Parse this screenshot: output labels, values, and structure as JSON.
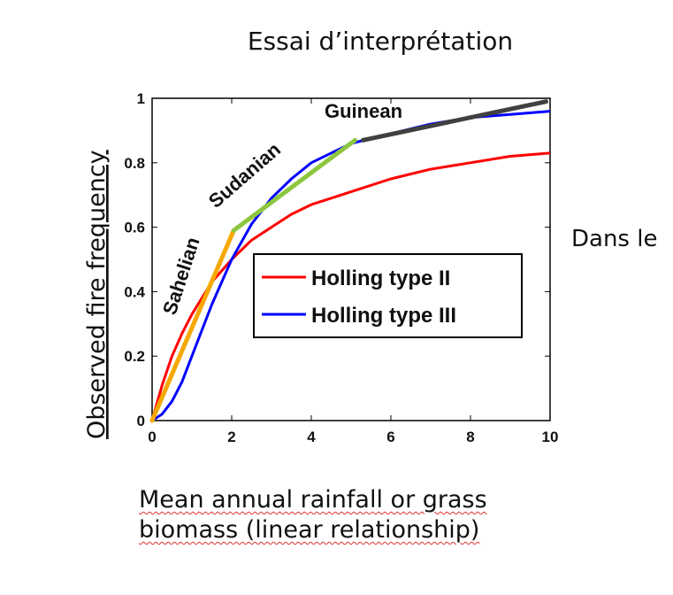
{
  "slide": {
    "title": "Essai d’interprétation",
    "side_text": "Dans le",
    "caption_line1": "Mean annual rainfall or grass",
    "caption_line2": "biomass (linear relationship)"
  },
  "chart_data": {
    "type": "line",
    "xlabel": "",
    "ylabel": "Observed fire frequency",
    "xlim": [
      0,
      10
    ],
    "ylim": [
      0,
      1
    ],
    "x_ticks": [
      0,
      2,
      4,
      6,
      8,
      10
    ],
    "y_ticks": [
      0,
      0.2,
      0.4,
      0.6,
      0.8,
      1
    ],
    "x_tick_labels": [
      "0",
      "2",
      "4",
      "6",
      "8",
      "10"
    ],
    "y_tick_labels": [
      "0",
      "0.2",
      "0.4",
      "0.6",
      "0.8",
      "1"
    ],
    "grid": false,
    "legend_position": "center-right",
    "series": [
      {
        "name": "Holling type II",
        "color": "#ff0000",
        "x": [
          0,
          0.25,
          0.5,
          0.75,
          1,
          1.5,
          2,
          2.5,
          3,
          3.5,
          4,
          5,
          6,
          7,
          8,
          9,
          10
        ],
        "y": [
          0,
          0.11,
          0.2,
          0.27,
          0.33,
          0.43,
          0.5,
          0.56,
          0.6,
          0.64,
          0.67,
          0.71,
          0.75,
          0.78,
          0.8,
          0.82,
          0.83
        ]
      },
      {
        "name": "Holling type III",
        "color": "#0000ff",
        "x": [
          0,
          0.25,
          0.5,
          0.75,
          1,
          1.5,
          2,
          2.5,
          3,
          3.5,
          4,
          5,
          6,
          7,
          8,
          9,
          10
        ],
        "y": [
          0,
          0.02,
          0.06,
          0.12,
          0.2,
          0.36,
          0.5,
          0.61,
          0.69,
          0.75,
          0.8,
          0.86,
          0.89,
          0.92,
          0.94,
          0.95,
          0.96
        ]
      }
    ],
    "segments": [
      {
        "label": "Sahelian",
        "color": "#f5a800",
        "x": [
          0,
          2.05
        ],
        "y": [
          0,
          0.59
        ]
      },
      {
        "label": "Sudanian",
        "color": "#8cc63f",
        "x": [
          2.05,
          5.1
        ],
        "y": [
          0.59,
          0.87
        ]
      },
      {
        "label": "Guinean",
        "color": "#404040",
        "x": [
          5.3,
          9.9
        ],
        "y": [
          0.87,
          0.99
        ]
      }
    ],
    "legend_entries": [
      "Holling type II",
      "Holling type III"
    ]
  }
}
